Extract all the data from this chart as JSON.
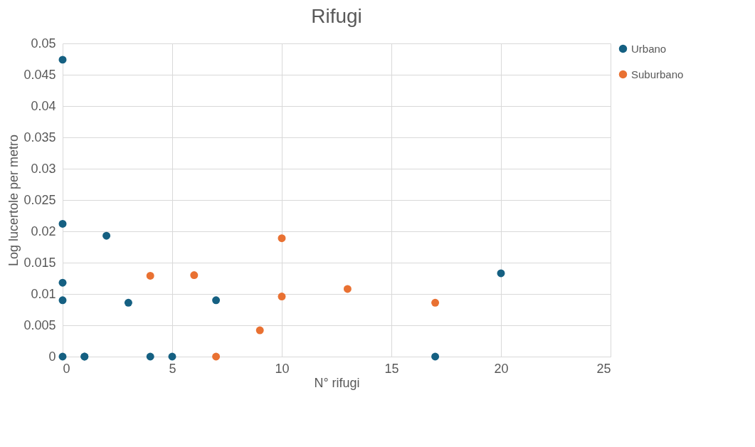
{
  "chart_data": {
    "type": "scatter",
    "title": "Rifugi",
    "xlabel": "N° rifugi",
    "ylabel": "Log lucertole per metro",
    "xlim": [
      0,
      25
    ],
    "xticks": [
      0,
      5,
      10,
      15,
      20,
      25
    ],
    "ylim": [
      0,
      0.05
    ],
    "yticks": [
      0,
      0.005,
      0.01,
      0.015,
      0.02,
      0.025,
      0.03,
      0.035,
      0.04,
      0.045,
      0.05
    ],
    "grid": true,
    "legend": "right",
    "marker": "circle",
    "series": [
      {
        "name": "Urbano",
        "color": "#156082",
        "x": [
          0,
          0,
          0,
          0,
          0,
          1,
          1,
          2,
          3,
          4,
          5,
          7,
          17,
          20
        ],
        "values": [
          0.0474,
          0.0212,
          0.0118,
          0.009,
          0,
          0,
          0,
          0.0193,
          0.0086,
          0,
          0,
          0.009,
          0,
          0.0133
        ]
      },
      {
        "name": "Suburbano",
        "color": "#e97132",
        "x": [
          4,
          6,
          7,
          9,
          10,
          10,
          13,
          17
        ],
        "values": [
          0.0129,
          0.013,
          0,
          0.0042,
          0.0189,
          0.0096,
          0.0108,
          0.0086
        ]
      }
    ]
  }
}
